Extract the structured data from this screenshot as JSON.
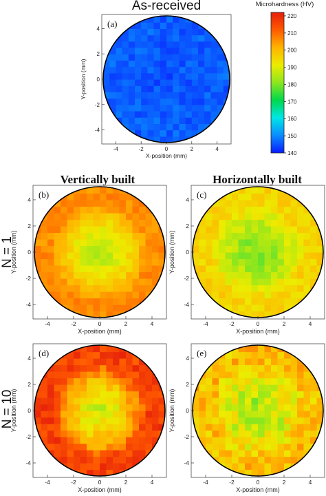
{
  "figure": {
    "title_as_received": "As-received",
    "header_vertical": "Vertically built",
    "header_horizontal": "Horizontally built",
    "row_label_n1": "N = 1",
    "row_label_n10": "N = 10"
  },
  "colorbar": {
    "title": "Microhardness (HV)",
    "min": 140,
    "max": 222,
    "ticks": [
      "140",
      "150",
      "160",
      "170",
      "180",
      "190",
      "200",
      "210",
      "220"
    ],
    "stops": [
      "#0a1cff",
      "#0a8cff",
      "#00e6e6",
      "#00d84c",
      "#8ce61e",
      "#ecec00",
      "#ffb400",
      "#ff5a00",
      "#e61e0a"
    ]
  },
  "chart_data": [
    {
      "type": "heatmap",
      "panel": "(a)",
      "title": "As-received",
      "xlabel": "X-position (mm)",
      "ylabel": "Y-position (mm)",
      "xlim": [
        -5,
        5
      ],
      "ylim": [
        -5,
        5
      ],
      "x_ticks": [
        "-4",
        "-2",
        "0",
        "2",
        "4"
      ],
      "y_ticks": [
        "4",
        "2",
        "0",
        "-2",
        "-4"
      ],
      "domain": "circle, radius 5 mm",
      "hardness_center_HV": 145,
      "hardness_edge_HV": 146,
      "variation_HV": 3
    },
    {
      "type": "heatmap",
      "panel": "(b)",
      "title": "Vertically built, N = 1",
      "xlabel": "X-position (mm)",
      "ylabel": "Y-position (mm)",
      "xlim": [
        -5,
        5
      ],
      "ylim": [
        -5,
        5
      ],
      "x_ticks": [
        "-4",
        "-2",
        "0",
        "2",
        "4"
      ],
      "y_ticks": [
        "4",
        "2",
        "0",
        "-2",
        "-4"
      ],
      "domain": "circle, radius 5 mm",
      "hardness_center_HV": 186,
      "hardness_edge_HV": 206,
      "variation_HV": 3
    },
    {
      "type": "heatmap",
      "panel": "(c)",
      "title": "Horizontally built, N = 1",
      "xlabel": "X-position (mm)",
      "ylabel": "Y-position (mm)",
      "xlim": [
        -5,
        5
      ],
      "ylim": [
        -5,
        5
      ],
      "x_ticks": [
        "-4",
        "-2",
        "0",
        "2",
        "4"
      ],
      "y_ticks": [
        "4",
        "2",
        "0",
        "-2",
        "-4"
      ],
      "domain": "circle, radius 5 mm",
      "hardness_center_HV": 180,
      "hardness_edge_HV": 196,
      "variation_HV": 4
    },
    {
      "type": "heatmap",
      "panel": "(d)",
      "title": "Vertically built, N = 10",
      "xlabel": "X-position (mm)",
      "ylabel": "Y-position (mm)",
      "xlim": [
        -5,
        5
      ],
      "ylim": [
        -5,
        5
      ],
      "x_ticks": [
        "-4",
        "-2",
        "0",
        "2",
        "4"
      ],
      "y_ticks": [
        "4",
        "2",
        "0",
        "-2",
        "-4"
      ],
      "domain": "circle, radius 5 mm",
      "hardness_center_HV": 188,
      "hardness_edge_HV": 216,
      "variation_HV": 5
    },
    {
      "type": "heatmap",
      "panel": "(e)",
      "title": "Horizontally built, N = 10",
      "xlabel": "X-position (mm)",
      "ylabel": "Y-position (mm)",
      "xlim": [
        -5,
        5
      ],
      "ylim": [
        -5,
        5
      ],
      "x_ticks": [
        "-4",
        "-2",
        "0",
        "2",
        "4"
      ],
      "y_ticks": [
        "4",
        "2",
        "0",
        "-2",
        "-4"
      ],
      "domain": "circle, radius 5 mm",
      "hardness_center_HV": 184,
      "hardness_edge_HV": 199,
      "variation_HV": 7
    }
  ]
}
